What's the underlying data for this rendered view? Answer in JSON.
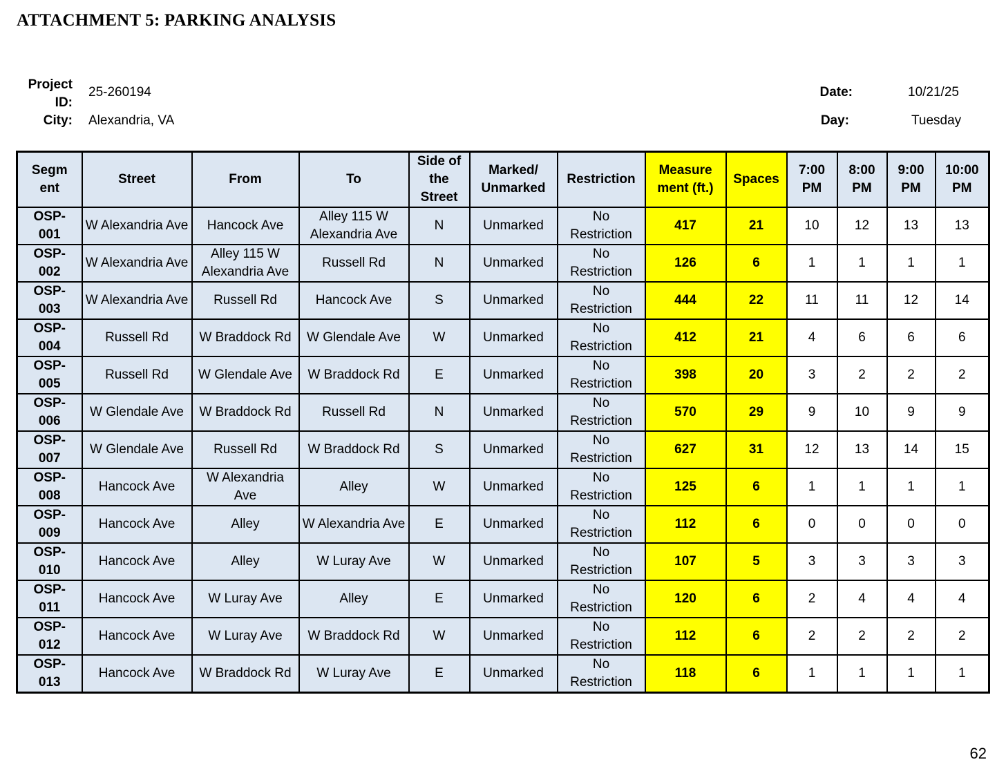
{
  "title": "ATTACHMENT 5: PARKING ANALYSIS",
  "meta": {
    "project_id_label": "Project ID:",
    "project_id": "25-260194",
    "city_label": "City:",
    "city": "Alexandria, VA",
    "date_label": "Date:",
    "date": "10/21/25",
    "day_label": "Day:",
    "day": "Tuesday"
  },
  "colors": {
    "header_bg": "#dce6f2",
    "highlight": "#ffff00"
  },
  "table": {
    "headers": [
      "Segment",
      "Street",
      "From",
      "To",
      "Side of the Street",
      "Marked/ Unmarked",
      "Restriction",
      "Measure ment (ft.)",
      "Spaces",
      "7:00 PM",
      "8:00 PM",
      "9:00 PM",
      "10:00 PM"
    ],
    "rows": [
      [
        "OSP-001",
        "W Alexandria Ave",
        "Hancock Ave",
        "Alley 115 W Alexandria Ave",
        "N",
        "Unmarked",
        "No Restriction",
        "417",
        "21",
        "10",
        "12",
        "13",
        "13"
      ],
      [
        "OSP-002",
        "W Alexandria Ave",
        "Alley 115 W Alexandria Ave",
        "Russell Rd",
        "N",
        "Unmarked",
        "No Restriction",
        "126",
        "6",
        "1",
        "1",
        "1",
        "1"
      ],
      [
        "OSP-003",
        "W Alexandria Ave",
        "Russell Rd",
        "Hancock Ave",
        "S",
        "Unmarked",
        "No Restriction",
        "444",
        "22",
        "11",
        "11",
        "12",
        "14"
      ],
      [
        "OSP-004",
        "Russell Rd",
        "W Braddock Rd",
        "W Glendale Ave",
        "W",
        "Unmarked",
        "No Restriction",
        "412",
        "21",
        "4",
        "6",
        "6",
        "6"
      ],
      [
        "OSP-005",
        "Russell Rd",
        "W Glendale Ave",
        "W Braddock Rd",
        "E",
        "Unmarked",
        "No Restriction",
        "398",
        "20",
        "3",
        "2",
        "2",
        "2"
      ],
      [
        "OSP-006",
        "W Glendale Ave",
        "W Braddock Rd",
        "Russell Rd",
        "N",
        "Unmarked",
        "No Restriction",
        "570",
        "29",
        "9",
        "10",
        "9",
        "9"
      ],
      [
        "OSP-007",
        "W Glendale Ave",
        "Russell Rd",
        "W Braddock Rd",
        "S",
        "Unmarked",
        "No Restriction",
        "627",
        "31",
        "12",
        "13",
        "14",
        "15"
      ],
      [
        "OSP-008",
        "Hancock Ave",
        "W Alexandria Ave",
        "Alley",
        "W",
        "Unmarked",
        "No Restriction",
        "125",
        "6",
        "1",
        "1",
        "1",
        "1"
      ],
      [
        "OSP-009",
        "Hancock Ave",
        "Alley",
        "W Alexandria Ave",
        "E",
        "Unmarked",
        "No Restriction",
        "112",
        "6",
        "0",
        "0",
        "0",
        "0"
      ],
      [
        "OSP-010",
        "Hancock Ave",
        "Alley",
        "W Luray Ave",
        "W",
        "Unmarked",
        "No Restriction",
        "107",
        "5",
        "3",
        "3",
        "3",
        "3"
      ],
      [
        "OSP-011",
        "Hancock Ave",
        "W Luray Ave",
        "Alley",
        "E",
        "Unmarked",
        "No Restriction",
        "120",
        "6",
        "2",
        "4",
        "4",
        "4"
      ],
      [
        "OSP-012",
        "Hancock Ave",
        "W Luray Ave",
        "W Braddock Rd",
        "W",
        "Unmarked",
        "No Restriction",
        "112",
        "6",
        "2",
        "2",
        "2",
        "2"
      ],
      [
        "OSP-013",
        "Hancock Ave",
        "W Braddock Rd",
        "W Luray Ave",
        "E",
        "Unmarked",
        "No Restriction",
        "118",
        "6",
        "1",
        "1",
        "1",
        "1"
      ]
    ]
  },
  "page_number": "62"
}
